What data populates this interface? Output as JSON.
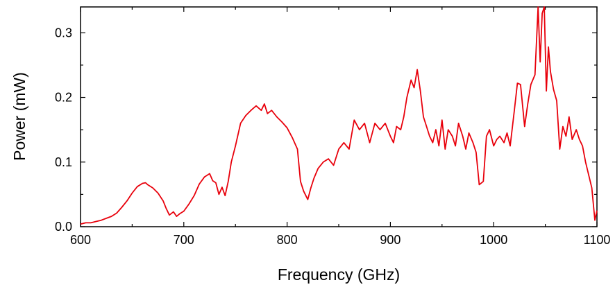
{
  "chart_data": {
    "type": "line",
    "title": "",
    "xlabel": "Frequency (GHz)",
    "ylabel": "Power (mW)",
    "xlim": [
      600,
      1100
    ],
    "ylim": [
      0.0,
      0.34
    ],
    "xticks": [
      600,
      700,
      800,
      900,
      1000,
      1100
    ],
    "xtick_labels": [
      "600",
      "700",
      "800",
      "900",
      "1000",
      "1100"
    ],
    "yticks": [
      0.0,
      0.1,
      0.2,
      0.3
    ],
    "ytick_labels": [
      "0.0",
      "0.1",
      "0.2",
      "0.3"
    ],
    "grid": false,
    "legend": "none",
    "line_color": "#e8000b",
    "series": [
      {
        "x": [
          600,
          605,
          610,
          615,
          620,
          625,
          630,
          635,
          640,
          645,
          650,
          655,
          660,
          663,
          665,
          670,
          675,
          680,
          683,
          686,
          690,
          693,
          696,
          700,
          705,
          710,
          715,
          720,
          725,
          728,
          731,
          734,
          737,
          740,
          743,
          746,
          750,
          755,
          760,
          765,
          770,
          775,
          778,
          781,
          785,
          790,
          795,
          800,
          805,
          810,
          813,
          816,
          820,
          823,
          826,
          830,
          835,
          840,
          845,
          850,
          855,
          860,
          865,
          870,
          875,
          880,
          885,
          890,
          895,
          900,
          903,
          906,
          910,
          913,
          916,
          920,
          923,
          926,
          929,
          932,
          935,
          938,
          941,
          944,
          947,
          950,
          953,
          956,
          960,
          963,
          966,
          970,
          973,
          976,
          980,
          983,
          986,
          990,
          993,
          996,
          1000,
          1003,
          1006,
          1010,
          1013,
          1016,
          1020,
          1023,
          1026,
          1030,
          1033,
          1036,
          1040,
          1043,
          1045,
          1047,
          1049,
          1051,
          1053,
          1055,
          1058,
          1061,
          1064,
          1067,
          1070,
          1073,
          1076,
          1080,
          1083,
          1086,
          1089,
          1092,
          1095,
          1098,
          1100
        ],
        "y": [
          0.004,
          0.006,
          0.006,
          0.008,
          0.01,
          0.013,
          0.016,
          0.021,
          0.03,
          0.04,
          0.052,
          0.062,
          0.067,
          0.068,
          0.065,
          0.06,
          0.052,
          0.04,
          0.028,
          0.018,
          0.023,
          0.016,
          0.02,
          0.024,
          0.035,
          0.048,
          0.066,
          0.077,
          0.082,
          0.071,
          0.068,
          0.05,
          0.061,
          0.048,
          0.07,
          0.1,
          0.125,
          0.16,
          0.172,
          0.18,
          0.187,
          0.18,
          0.19,
          0.175,
          0.18,
          0.17,
          0.162,
          0.153,
          0.138,
          0.12,
          0.07,
          0.055,
          0.042,
          0.06,
          0.075,
          0.09,
          0.1,
          0.105,
          0.095,
          0.12,
          0.13,
          0.12,
          0.165,
          0.15,
          0.16,
          0.13,
          0.16,
          0.15,
          0.16,
          0.14,
          0.13,
          0.155,
          0.15,
          0.17,
          0.2,
          0.227,
          0.215,
          0.243,
          0.21,
          0.17,
          0.155,
          0.14,
          0.13,
          0.15,
          0.125,
          0.165,
          0.12,
          0.15,
          0.14,
          0.125,
          0.16,
          0.14,
          0.12,
          0.145,
          0.13,
          0.115,
          0.065,
          0.07,
          0.14,
          0.15,
          0.125,
          0.135,
          0.14,
          0.13,
          0.145,
          0.125,
          0.18,
          0.222,
          0.22,
          0.155,
          0.19,
          0.22,
          0.235,
          0.34,
          0.255,
          0.33,
          0.34,
          0.21,
          0.278,
          0.24,
          0.212,
          0.195,
          0.12,
          0.155,
          0.14,
          0.17,
          0.135,
          0.15,
          0.135,
          0.125,
          0.1,
          0.08,
          0.06,
          0.01,
          0.025
        ]
      }
    ]
  }
}
